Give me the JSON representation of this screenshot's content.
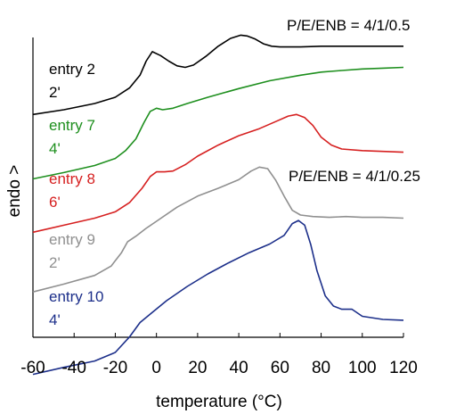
{
  "chart_data": {
    "type": "line",
    "xlabel": "temperature (°C)",
    "ylabel": "endo >",
    "xlim": [
      -60,
      120
    ],
    "xticks": [
      -60,
      -40,
      -20,
      0,
      20,
      40,
      60,
      80,
      100,
      120
    ],
    "grid": false,
    "annotations": [
      {
        "text": "P/E/ENB = 4/1/0.5"
      },
      {
        "text": "P/E/ENB = 4/1/0.25"
      }
    ],
    "series": [
      {
        "name": "entry 2",
        "sub": "2'",
        "color": "#000000",
        "x": [
          -60,
          -45,
          -30,
          -20,
          -13,
          -8,
          -5,
          -2,
          2,
          6,
          10,
          14,
          18,
          24,
          30,
          36,
          41,
          44,
          48,
          52,
          56,
          60,
          70,
          80,
          90,
          100,
          110,
          120
        ],
        "y": [
          2.36,
          2.42,
          2.5,
          2.58,
          2.7,
          2.86,
          3.04,
          3.16,
          3.11,
          3.04,
          2.98,
          2.96,
          2.99,
          3.1,
          3.23,
          3.33,
          3.37,
          3.36,
          3.32,
          3.26,
          3.23,
          3.22,
          3.22,
          3.23,
          3.23,
          3.23,
          3.23,
          3.23
        ]
      },
      {
        "name": "entry 7",
        "sub": "4'",
        "color": "#1e8f1e",
        "x": [
          -60,
          -45,
          -30,
          -20,
          -15,
          -10,
          -6,
          -3,
          0,
          3,
          8,
          15,
          25,
          40,
          55,
          70,
          80,
          90,
          100,
          110,
          120
        ],
        "y": [
          1.54,
          1.62,
          1.71,
          1.8,
          1.9,
          2.05,
          2.26,
          2.4,
          2.44,
          2.42,
          2.44,
          2.5,
          2.58,
          2.69,
          2.79,
          2.86,
          2.9,
          2.92,
          2.94,
          2.95,
          2.96
        ]
      },
      {
        "name": "entry 8",
        "sub": "6'",
        "color": "#d62020",
        "x": [
          -60,
          -45,
          -30,
          -20,
          -13,
          -7,
          -3,
          0,
          4,
          8,
          14,
          20,
          30,
          40,
          50,
          58,
          64,
          68,
          72,
          76,
          80,
          85,
          90,
          100,
          110,
          120
        ],
        "y": [
          0.86,
          0.95,
          1.04,
          1.12,
          1.24,
          1.42,
          1.57,
          1.63,
          1.63,
          1.64,
          1.72,
          1.83,
          1.97,
          2.09,
          2.18,
          2.27,
          2.34,
          2.36,
          2.32,
          2.22,
          2.07,
          1.97,
          1.92,
          1.9,
          1.89,
          1.88
        ]
      },
      {
        "name": "entry 9",
        "sub": "2'",
        "color": "#909090",
        "x": [
          -60,
          -45,
          -30,
          -22,
          -17,
          -14,
          -10,
          -5,
          0,
          10,
          20,
          30,
          40,
          46,
          50,
          54,
          58,
          62,
          66,
          70,
          76,
          84,
          92,
          100,
          110,
          120
        ],
        "y": [
          0.1,
          0.2,
          0.31,
          0.43,
          0.6,
          0.74,
          0.81,
          0.91,
          1.0,
          1.18,
          1.32,
          1.42,
          1.53,
          1.64,
          1.69,
          1.67,
          1.52,
          1.32,
          1.14,
          1.08,
          1.06,
          1.05,
          1.06,
          1.05,
          1.05,
          1.04
        ]
      },
      {
        "name": "entry 10",
        "sub": "4'",
        "color": "#1c2f8a",
        "x": [
          -60,
          -45,
          -30,
          -20,
          -13,
          -8,
          -2,
          5,
          15,
          25,
          35,
          45,
          55,
          62,
          66,
          69,
          72,
          75,
          78,
          82,
          86,
          90,
          95,
          100,
          110,
          120
        ],
        "y": [
          -0.95,
          -0.86,
          -0.78,
          -0.67,
          -0.47,
          -0.29,
          -0.16,
          -0.01,
          0.17,
          0.33,
          0.47,
          0.6,
          0.71,
          0.82,
          0.97,
          1.01,
          0.95,
          0.7,
          0.37,
          0.05,
          -0.08,
          -0.12,
          -0.12,
          -0.21,
          -0.25,
          -0.26
        ]
      }
    ]
  }
}
